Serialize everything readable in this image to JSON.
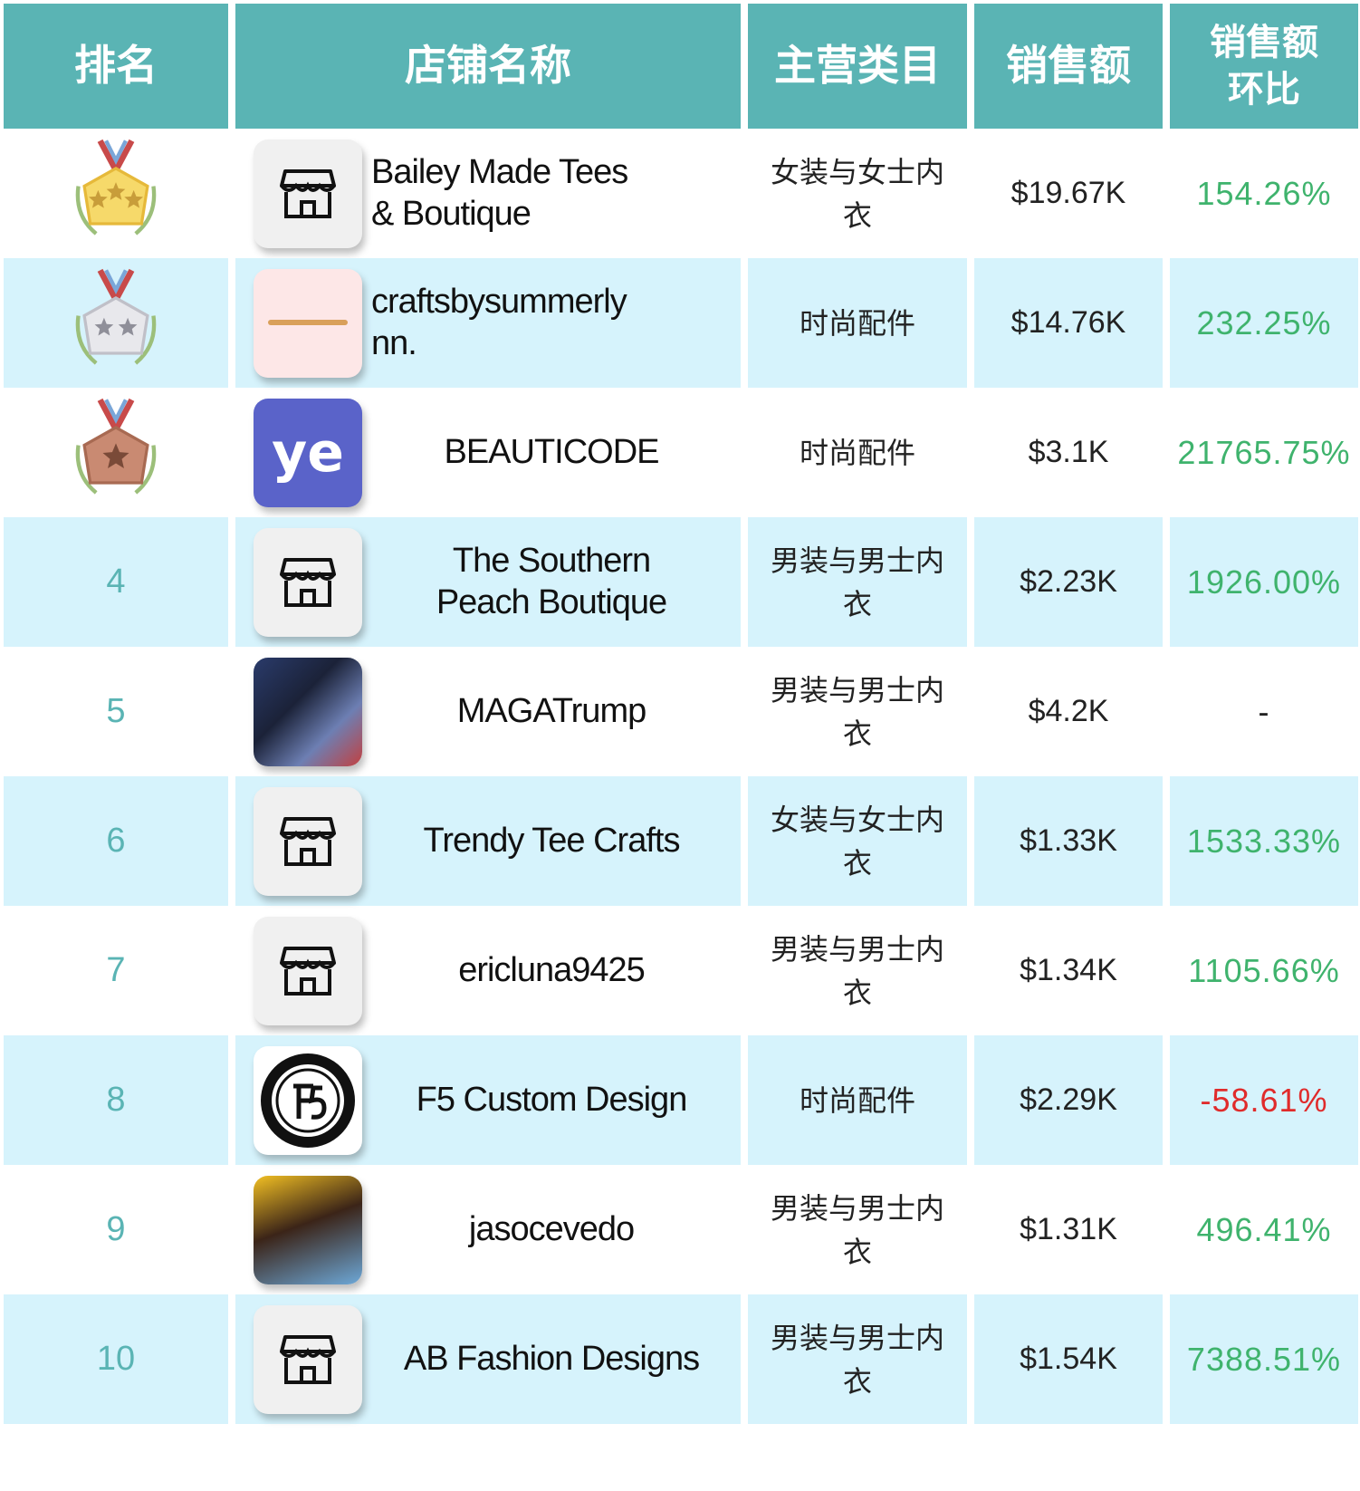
{
  "header": {
    "rank": "排名",
    "store": "店铺名称",
    "category": "主营类目",
    "sales": "销售额",
    "sales_mom": "销售额\n环比"
  },
  "colors": {
    "header_bg": "#5ab4b4",
    "alt_row_bg": "#d6f3fc",
    "positive": "#3fb36d",
    "negative": "#e02b2b"
  },
  "rows": [
    {
      "rank": "1",
      "medal": "gold",
      "logo": "store-icon",
      "name": "Bailey Made Tees\n& Boutique",
      "category": "女装与女士内\n衣",
      "sales": "$19.67K",
      "mom": "154.26%"
    },
    {
      "rank": "2",
      "medal": "silver",
      "logo": "pink-logo",
      "name": "craftsbysummerly\nnn.",
      "category": "时尚配件",
      "sales": "$14.76K",
      "mom": "232.25%"
    },
    {
      "rank": "3",
      "medal": "bronze",
      "logo": "ye-logo",
      "logo_text": "ye",
      "name": "BEAUTICODE",
      "category": "时尚配件",
      "sales": "$3.1K",
      "mom": "21765.75%"
    },
    {
      "rank": "4",
      "logo": "store-icon",
      "name": "The Southern\nPeach Boutique",
      "category": "男装与男士内\n衣",
      "sales": "$2.23K",
      "mom": "1926.00%"
    },
    {
      "rank": "5",
      "logo": "photo",
      "name": "MAGATrump",
      "category": "男装与男士内\n衣",
      "sales": "$4.2K",
      "mom": "-"
    },
    {
      "rank": "6",
      "logo": "store-icon",
      "name": "Trendy Tee Crafts",
      "category": "女装与女士内\n衣",
      "sales": "$1.33K",
      "mom": "1533.33%"
    },
    {
      "rank": "7",
      "logo": "store-icon",
      "name": "ericluna9425",
      "category": "男装与男士内\n衣",
      "sales": "$1.34K",
      "mom": "1105.66%"
    },
    {
      "rank": "8",
      "logo": "seal",
      "name": "F5 Custom Design",
      "category": "时尚配件",
      "sales": "$2.29K",
      "mom": "-58.61%"
    },
    {
      "rank": "9",
      "logo": "photo",
      "name": "jasocevedo",
      "category": "男装与男士内\n衣",
      "sales": "$1.31K",
      "mom": "496.41%"
    },
    {
      "rank": "10",
      "logo": "store-icon",
      "name": "AB Fashion Designs",
      "category": "男装与男士内\n衣",
      "sales": "$1.54K",
      "mom": "7388.51%"
    }
  ]
}
